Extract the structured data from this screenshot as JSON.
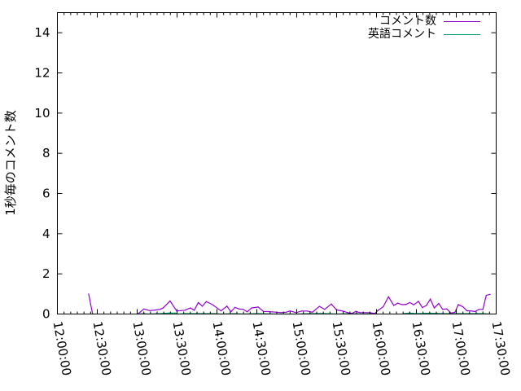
{
  "chart_data": {
    "type": "line",
    "title": "",
    "xlabel": "",
    "ylabel": "1秒毎のコメント数",
    "xlim": [
      "12:00:00",
      "17:30:00"
    ],
    "ylim": [
      0,
      15
    ],
    "xticks": [
      "12:00:00",
      "12:30:00",
      "13:00:00",
      "13:30:00",
      "14:00:00",
      "14:30:00",
      "15:00:00",
      "15:30:00",
      "16:00:00",
      "16:30:00",
      "17:00:00",
      "17:30:00"
    ],
    "yticks": [
      "0",
      "2",
      "4",
      "6",
      "8",
      "10",
      "12",
      "14"
    ],
    "grid": false,
    "legend_position": "top-right",
    "series": [
      {
        "name": "コメント数",
        "color": "#9400d3",
        "points": [
          [
            "12:23:30",
            1.0
          ],
          [
            "12:25:00",
            0.5
          ],
          [
            "12:26:30",
            0
          ],
          [
            "13:00:30",
            0
          ],
          [
            "13:05:00",
            0.25
          ],
          [
            "13:09:30",
            0.17
          ],
          [
            "13:13:30",
            0.2
          ],
          [
            "13:17:30",
            0.24
          ],
          [
            "13:19:30",
            0.3
          ],
          [
            "13:24:45",
            0.65
          ],
          [
            "13:29:45",
            0.15
          ],
          [
            "13:36:00",
            0.19
          ],
          [
            "13:40:00",
            0.3
          ],
          [
            "13:43:00",
            0.19
          ],
          [
            "13:46:00",
            0.57
          ],
          [
            "13:49:00",
            0.39
          ],
          [
            "13:52:00",
            0.62
          ],
          [
            "13:57:00",
            0.45
          ],
          [
            "14:03:00",
            0.16
          ],
          [
            "14:07:30",
            0.39
          ],
          [
            "14:10:30",
            0.11
          ],
          [
            "14:13:30",
            0.33
          ],
          [
            "14:16:45",
            0.25
          ],
          [
            "14:19:45",
            0.23
          ],
          [
            "14:22:45",
            0.11
          ],
          [
            "14:26:00",
            0.3
          ],
          [
            "14:31:00",
            0.35
          ],
          [
            "14:35:00",
            0.13
          ],
          [
            "14:39:00",
            0.12
          ],
          [
            "14:45:00",
            0.09
          ],
          [
            "14:48:00",
            0.07
          ],
          [
            "14:52:00",
            0.09
          ],
          [
            "14:55:00",
            0.15
          ],
          [
            "14:59:30",
            0.07
          ],
          [
            "15:03:45",
            0.15
          ],
          [
            "15:07:45",
            0.15
          ],
          [
            "15:11:45",
            0.09
          ],
          [
            "15:17:00",
            0.38
          ],
          [
            "15:21:00",
            0.23
          ],
          [
            "15:26:00",
            0.5
          ],
          [
            "15:30:00",
            0.2
          ],
          [
            "15:34:00",
            0.16
          ],
          [
            "15:38:30",
            0.07
          ],
          [
            "15:41:30",
            0.03
          ],
          [
            "15:44:30",
            0.13
          ],
          [
            "15:47:30",
            0.07
          ],
          [
            "15:54:45",
            0.07
          ],
          [
            "15:58:45",
            0.03
          ],
          [
            "16:00:45",
            0.16
          ],
          [
            "16:05:00",
            0.36
          ],
          [
            "16:09:00",
            0.86
          ],
          [
            "16:13:00",
            0.43
          ],
          [
            "16:16:00",
            0.54
          ],
          [
            "16:19:00",
            0.47
          ],
          [
            "16:22:00",
            0.47
          ],
          [
            "16:25:00",
            0.57
          ],
          [
            "16:28:00",
            0.46
          ],
          [
            "16:31:30",
            0.63
          ],
          [
            "16:34:30",
            0.32
          ],
          [
            "16:37:30",
            0.43
          ],
          [
            "16:40:30",
            0.74
          ],
          [
            "16:43:30",
            0.3
          ],
          [
            "16:46:45",
            0.53
          ],
          [
            "16:49:45",
            0.23
          ],
          [
            "16:52:45",
            0.26
          ],
          [
            "16:56:00",
            0.05
          ],
          [
            "16:59:00",
            0.09
          ],
          [
            "17:01:30",
            0.47
          ],
          [
            "17:05:00",
            0.36
          ],
          [
            "17:08:00",
            0.16
          ],
          [
            "17:11:00",
            0.16
          ],
          [
            "17:14:00",
            0.12
          ],
          [
            "17:17:00",
            0.23
          ],
          [
            "17:20:00",
            0.23
          ],
          [
            "17:22:30",
            0.93
          ],
          [
            "17:25:30",
            0.98
          ]
        ]
      },
      {
        "name": "英語コメント",
        "color": "#009e73",
        "points": [
          [
            "13:00:30",
            0
          ],
          [
            "13:05:00",
            0.02
          ],
          [
            "13:08:00",
            0
          ],
          [
            "13:17:00",
            0.02
          ],
          [
            "13:24:00",
            0.05
          ],
          [
            "13:29:00",
            0.05
          ],
          [
            "13:31:00",
            0
          ],
          [
            "13:36:00",
            0.02
          ],
          [
            "13:50:00",
            0.02
          ],
          [
            "13:58:00",
            0.02
          ],
          [
            "14:03:00",
            0
          ],
          [
            "14:13:00",
            0.02
          ],
          [
            "14:20:00",
            0
          ],
          [
            "14:30:00",
            0.02
          ],
          [
            "14:45:00",
            0
          ],
          [
            "15:00:00",
            0
          ],
          [
            "15:10:00",
            0.02
          ],
          [
            "15:20:00",
            0.03
          ],
          [
            "15:30:00",
            0
          ],
          [
            "15:40:00",
            0.02
          ],
          [
            "15:50:00",
            0
          ],
          [
            "16:00:00",
            0.02
          ],
          [
            "16:20:00",
            0.02
          ],
          [
            "16:25:00",
            0.05
          ],
          [
            "16:30:00",
            0.02
          ],
          [
            "16:40:00",
            0.04
          ],
          [
            "16:50:00",
            0.02
          ],
          [
            "17:00:00",
            0.02
          ],
          [
            "17:10:00",
            0.02
          ],
          [
            "17:20:00",
            0.02
          ],
          [
            "17:25:30",
            0
          ]
        ]
      }
    ]
  }
}
